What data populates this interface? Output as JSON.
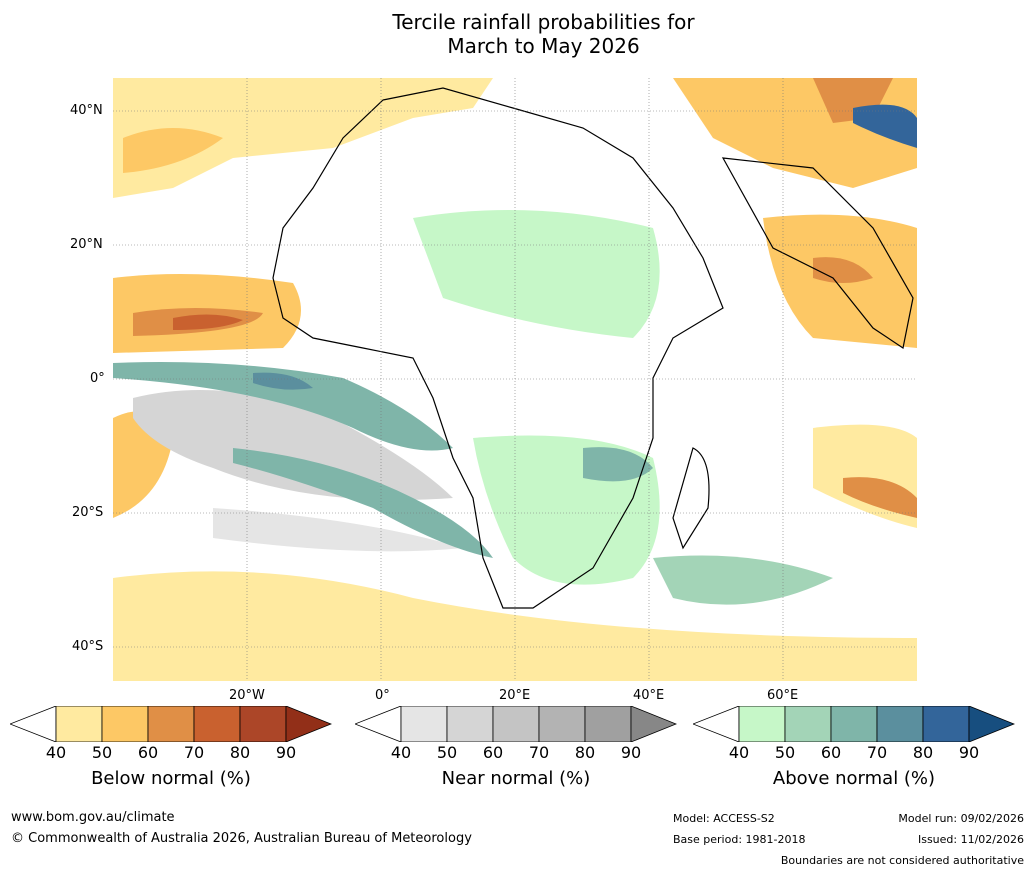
{
  "title": {
    "line1": "Tercile rainfall probabilities for",
    "line2": "March to May 2026"
  },
  "map": {
    "lat_labels": [
      "40°N",
      "20°N",
      "0°",
      "20°S",
      "40°S"
    ],
    "lon_labels": [
      "20°W",
      "0°",
      "20°E",
      "40°E",
      "60°E"
    ]
  },
  "legends": {
    "below": {
      "label": "Below normal (%)",
      "ticks": [
        "40",
        "50",
        "60",
        "70",
        "80",
        "90"
      ],
      "colors": [
        "#ffffff",
        "#ffeaa0",
        "#fdc865",
        "#e08f46",
        "#c9612f",
        "#ac4628",
        "#922f18"
      ]
    },
    "near": {
      "label": "Near normal (%)",
      "ticks": [
        "40",
        "50",
        "60",
        "70",
        "80",
        "90"
      ],
      "colors": [
        "#ffffff",
        "#e5e5e5",
        "#d5d5d5",
        "#c4c4c4",
        "#b3b3b3",
        "#a0a0a0",
        "#878787"
      ]
    },
    "above": {
      "label": "Above normal (%)",
      "ticks": [
        "40",
        "50",
        "60",
        "70",
        "80",
        "90"
      ],
      "colors": [
        "#ffffff",
        "#c6f7c8",
        "#a3d4b7",
        "#7fb5a9",
        "#5b8f9e",
        "#33659a",
        "#174e7f"
      ]
    }
  },
  "footer": {
    "website": "www.bom.gov.au/climate",
    "copyright": "© Commonwealth of Australia 2026, Australian Bureau of Meteorology",
    "model": "Model: ACCESS-S2",
    "base_period": "Base period: 1981-2018",
    "model_run": "Model run: 09/02/2026",
    "issued": "Issued: 11/02/2026",
    "disclaimer": "Boundaries are not considered authoritative"
  }
}
